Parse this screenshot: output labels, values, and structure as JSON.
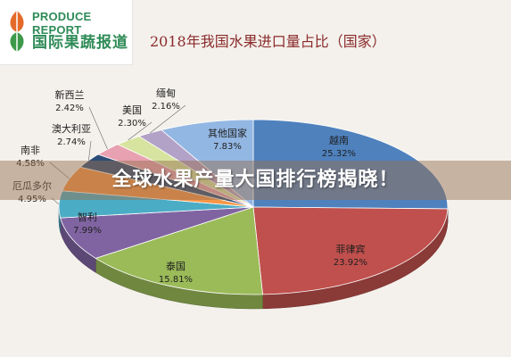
{
  "logo": {
    "english": "PRODUCE REPORT",
    "chinese": "国际果蔬报道",
    "mark_icon": "leaf-icon",
    "brand_color": "#2e8b57"
  },
  "banner": {
    "text": "全球水果产量大国排行榜揭晓！"
  },
  "chart_data": {
    "type": "pie",
    "title": "2018年我国水果进口量占比（国家）",
    "unit": "%",
    "slices": [
      {
        "label": "越南",
        "value": 25.32,
        "color": "#4f81bd"
      },
      {
        "label": "菲律宾",
        "value": 23.92,
        "color": "#c0504d"
      },
      {
        "label": "泰国",
        "value": 15.81,
        "color": "#9bbb59"
      },
      {
        "label": "智利",
        "value": 7.99,
        "color": "#8064a2"
      },
      {
        "label": "厄瓜多尔",
        "value": 4.95,
        "color": "#4bacc6"
      },
      {
        "label": "南非",
        "value": 4.58,
        "color": "#f79646"
      },
      {
        "label": "澳大利亚",
        "value": 2.74,
        "color": "#2c4d75"
      },
      {
        "label": "新西兰",
        "value": 2.42,
        "color": "#e8a1b0"
      },
      {
        "label": "美国",
        "value": 2.3,
        "color": "#d7e4a0"
      },
      {
        "label": "缅甸",
        "value": 2.16,
        "color": "#b3a2c7"
      },
      {
        "label": "其他国家",
        "value": 7.83,
        "color": "#93b7e3"
      }
    ]
  }
}
